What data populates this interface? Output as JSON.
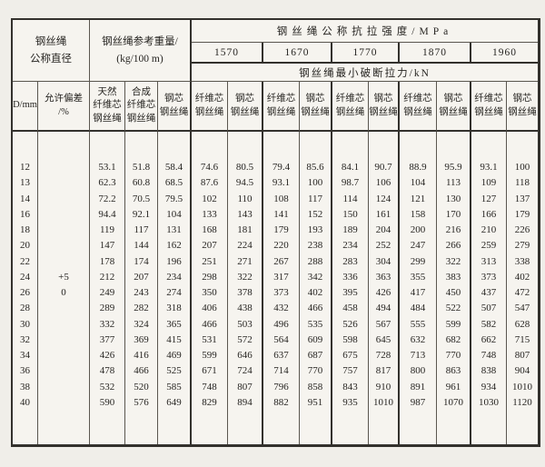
{
  "table": {
    "header": {
      "diameter": "钢丝绳\n公称直径",
      "weight": "钢丝绳参考重量/\n(kg/100 m)",
      "strength": "钢丝绳公称抗拉强度/MPa",
      "breaking": "钢丝绳最小破断拉力/kN",
      "grades": [
        "1570",
        "1670",
        "1770",
        "1870",
        "1960"
      ]
    },
    "sub": {
      "d": "D/mm",
      "tol": "允许偏差\n/%",
      "natural": "天然\n纤维芯\n钢丝绳",
      "synthetic": "合成\n纤维芯\n钢丝绳",
      "steel_core": "钢芯\n钢丝绳",
      "fiber": "纤维芯\n钢丝绳",
      "steel": "钢芯\n钢丝绳"
    },
    "tolerance_values": [
      "+5",
      "0"
    ],
    "tolerance_row_positions": [
      7,
      8
    ],
    "rows": [
      {
        "d": "12",
        "weights": [
          "53.1",
          "51.8",
          "58.4"
        ],
        "forces": [
          "74.6",
          "80.5",
          "79.4",
          "85.6",
          "84.1",
          "90.7",
          "88.9",
          "95.9",
          "93.1",
          "100"
        ]
      },
      {
        "d": "13",
        "weights": [
          "62.3",
          "60.8",
          "68.5"
        ],
        "forces": [
          "87.6",
          "94.5",
          "93.1",
          "100",
          "98.7",
          "106",
          "104",
          "113",
          "109",
          "118"
        ]
      },
      {
        "d": "14",
        "weights": [
          "72.2",
          "70.5",
          "79.5"
        ],
        "forces": [
          "102",
          "110",
          "108",
          "117",
          "114",
          "124",
          "121",
          "130",
          "127",
          "137"
        ]
      },
      {
        "d": "16",
        "weights": [
          "94.4",
          "92.1",
          "104"
        ],
        "forces": [
          "133",
          "143",
          "141",
          "152",
          "150",
          "161",
          "158",
          "170",
          "166",
          "179"
        ]
      },
      {
        "d": "18",
        "weights": [
          "119",
          "117",
          "131"
        ],
        "forces": [
          "168",
          "181",
          "179",
          "193",
          "189",
          "204",
          "200",
          "216",
          "210",
          "226"
        ]
      },
      {
        "d": "20",
        "weights": [
          "147",
          "144",
          "162"
        ],
        "forces": [
          "207",
          "224",
          "220",
          "238",
          "234",
          "252",
          "247",
          "266",
          "259",
          "279"
        ]
      },
      {
        "d": "22",
        "weights": [
          "178",
          "174",
          "196"
        ],
        "forces": [
          "251",
          "271",
          "267",
          "288",
          "283",
          "304",
          "299",
          "322",
          "313",
          "338"
        ]
      },
      {
        "d": "24",
        "weights": [
          "212",
          "207",
          "234"
        ],
        "forces": [
          "298",
          "322",
          "317",
          "342",
          "336",
          "363",
          "355",
          "383",
          "373",
          "402"
        ]
      },
      {
        "d": "26",
        "weights": [
          "249",
          "243",
          "274"
        ],
        "forces": [
          "350",
          "378",
          "373",
          "402",
          "395",
          "426",
          "417",
          "450",
          "437",
          "472"
        ]
      },
      {
        "d": "28",
        "weights": [
          "289",
          "282",
          "318"
        ],
        "forces": [
          "406",
          "438",
          "432",
          "466",
          "458",
          "494",
          "484",
          "522",
          "507",
          "547"
        ]
      },
      {
        "d": "30",
        "weights": [
          "332",
          "324",
          "365"
        ],
        "forces": [
          "466",
          "503",
          "496",
          "535",
          "526",
          "567",
          "555",
          "599",
          "582",
          "628"
        ]
      },
      {
        "d": "32",
        "weights": [
          "377",
          "369",
          "415"
        ],
        "forces": [
          "531",
          "572",
          "564",
          "609",
          "598",
          "645",
          "632",
          "682",
          "662",
          "715"
        ]
      },
      {
        "d": "34",
        "weights": [
          "426",
          "416",
          "469"
        ],
        "forces": [
          "599",
          "646",
          "637",
          "687",
          "675",
          "728",
          "713",
          "770",
          "748",
          "807"
        ]
      },
      {
        "d": "36",
        "weights": [
          "478",
          "466",
          "525"
        ],
        "forces": [
          "671",
          "724",
          "714",
          "770",
          "757",
          "817",
          "800",
          "863",
          "838",
          "904"
        ]
      },
      {
        "d": "38",
        "weights": [
          "532",
          "520",
          "585"
        ],
        "forces": [
          "748",
          "807",
          "796",
          "858",
          "843",
          "910",
          "891",
          "961",
          "934",
          "1010"
        ]
      },
      {
        "d": "40",
        "weights": [
          "590",
          "576",
          "649"
        ],
        "forces": [
          "829",
          "894",
          "882",
          "951",
          "935",
          "1010",
          "987",
          "1070",
          "1030",
          "1120"
        ]
      }
    ]
  }
}
